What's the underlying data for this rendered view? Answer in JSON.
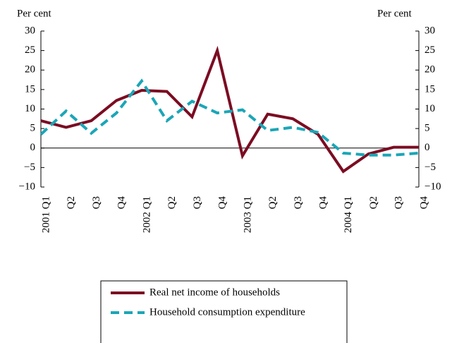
{
  "chart_data": {
    "type": "line",
    "y_label": "Per cent",
    "y2_label": "Per cent",
    "categories": [
      "2001 Q1",
      "Q2",
      "Q3",
      "Q4",
      "2002 Q1",
      "Q2",
      "Q3",
      "Q4",
      "2003 Q1",
      "Q2",
      "Q3",
      "Q4",
      "2004 Q1",
      "Q2",
      "Q3",
      "Q4"
    ],
    "series": [
      {
        "name": "Real net income of households",
        "color": "#7b0c22",
        "dash": false,
        "values": [
          7,
          5.3,
          7,
          12.2,
          14.8,
          14.5,
          8,
          25,
          -2,
          8.7,
          7.5,
          3.5,
          -6,
          -1.5,
          0.2,
          0.2
        ]
      },
      {
        "name": "Household consumption expenditure",
        "color": "#1aa6b7",
        "dash": true,
        "values": [
          3.5,
          9.5,
          3.8,
          9,
          17.2,
          7,
          12,
          9,
          9.8,
          4.5,
          5.3,
          4,
          -1.3,
          -1.8,
          -1.8,
          -1.3
        ]
      }
    ],
    "ylim": [
      -10,
      30
    ],
    "yticks": [
      {
        "value": -10,
        "label": "−10"
      },
      {
        "value": -5,
        "label": "−5"
      },
      0,
      5,
      10,
      15,
      20,
      25,
      30
    ],
    "y2lim": [
      -10,
      30
    ],
    "y2ticks": [
      {
        "value": -10,
        "label": "−10"
      },
      {
        "value": -5,
        "label": "−5"
      },
      0,
      5,
      10,
      15,
      20,
      25,
      30
    ]
  }
}
